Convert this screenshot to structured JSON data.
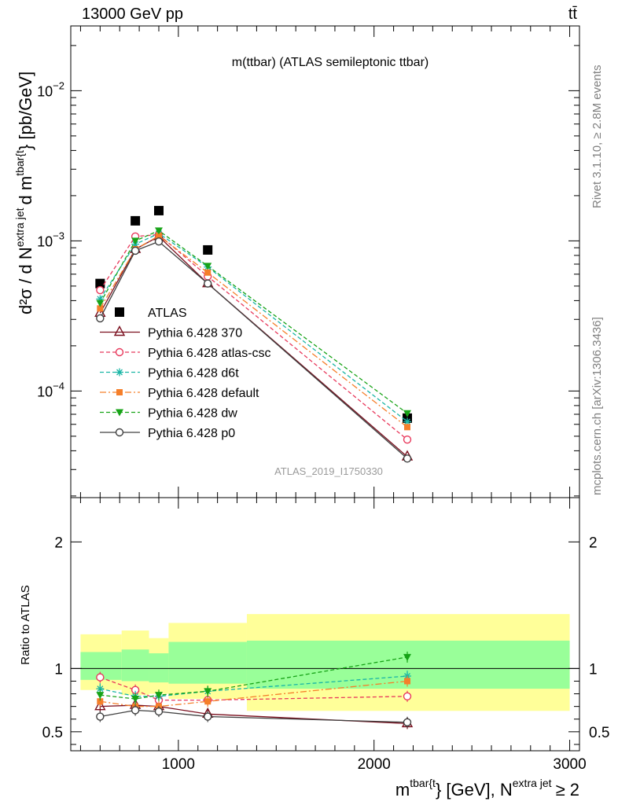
{
  "header": {
    "energy_label": "13000 GeV pp",
    "process_label": "tt̄"
  },
  "side_labels": {
    "rivet": "Rivet 3.1.10, ≥ 2.8M events",
    "mcplots": "mcplots.cern.ch [arXiv:1306.3436]"
  },
  "chart_data": [
    {
      "type": "scatter",
      "panel": "main",
      "title": "m(ttbar) (ATLAS semileptonic ttbar)",
      "analysis_id": "ATLAS_2019_I1750330",
      "ylabel_parts": {
        "d2sigma": "d²σ / d N",
        "sup1": "extra jet",
        "dm": "d m",
        "sup2": "tbar{t",
        "unit": "} [pb/GeV]"
      },
      "xlabel_parts": {
        "m": "m",
        "sup1": "tbar{t",
        "unit": "} [GeV], N",
        "sup2": "extra jet",
        "ge": "≥ 2"
      },
      "yscale": "log",
      "ylim": [
        1.95e-05,
        0.027
      ],
      "xlim": [
        450,
        3050
      ],
      "y_tick_labels": [
        {
          "value": 0.0001,
          "base": "10",
          "exp": "−4"
        },
        {
          "value": 0.001,
          "base": "10",
          "exp": "−3"
        },
        {
          "value": 0.01,
          "base": "10",
          "exp": "−2"
        }
      ],
      "legend": {
        "position": "left-center"
      },
      "x": [
        600,
        780,
        900,
        1150,
        2170
      ],
      "series": [
        {
          "name": "ATLAS",
          "color": "#000000",
          "marker": "filled-square",
          "values": [
            0.00052,
            0.00136,
            0.00159,
            0.00087,
            6.6e-05
          ]
        },
        {
          "name": "Pythia 6.428 370",
          "color": "#7a0f1e",
          "marker": "open-triangle",
          "line": "solid",
          "values": [
            0.00033,
            0.00088,
            0.00107,
            0.00052,
            3.65e-05
          ]
        },
        {
          "name": "Pythia 6.428 atlas-csc",
          "color": "#e8395c",
          "marker": "open-circle",
          "line": "dashed",
          "values": [
            0.00047,
            0.00107,
            0.0011,
            0.00058,
            4.75e-05
          ]
        },
        {
          "name": "Pythia 6.428 d6t",
          "color": "#19b5a5",
          "marker": "star",
          "line": "dashed",
          "values": [
            0.00041,
            0.00095,
            0.00112,
            0.00067,
            6.25e-05
          ]
        },
        {
          "name": "Pythia 6.428 default",
          "color": "#f57f2a",
          "marker": "filled-square-small",
          "line": "dashdot",
          "values": [
            0.000355,
            0.00088,
            0.00108,
            0.000615,
            5.75e-05
          ]
        },
        {
          "name": "Pythia 6.428 dw",
          "color": "#17a317",
          "marker": "filled-down-triangle",
          "line": "dashed",
          "values": [
            0.000385,
            0.001,
            0.00117,
            0.00068,
            7.1e-05
          ]
        },
        {
          "name": "Pythia 6.428 p0",
          "color": "#404040",
          "marker": "open-circle",
          "line": "solid",
          "values": [
            0.000305,
            0.00086,
            0.00099,
            0.00052,
            3.55e-05
          ]
        }
      ]
    },
    {
      "type": "line",
      "panel": "ratio",
      "ylabel": "Ratio to ATLAS",
      "ylim": [
        0.35,
        2.35
      ],
      "xlim": [
        450,
        3050
      ],
      "y_tick_labels": [
        0.5,
        1,
        2
      ],
      "x_tick_labels": [
        1000,
        2000,
        3000
      ],
      "bands": [
        {
          "from": 500,
          "to": 710,
          "yellow": [
            0.83,
            1.27
          ],
          "green": [
            0.91,
            1.13
          ]
        },
        {
          "from": 710,
          "to": 850,
          "yellow": [
            0.79,
            1.3
          ],
          "green": [
            0.9,
            1.15
          ]
        },
        {
          "from": 850,
          "to": 950,
          "yellow": [
            0.8,
            1.24
          ],
          "green": [
            0.89,
            1.12
          ]
        },
        {
          "from": 950,
          "to": 1350,
          "yellow": [
            0.76,
            1.36
          ],
          "green": [
            0.88,
            1.21
          ]
        },
        {
          "from": 1350,
          "to": 3000,
          "yellow": [
            0.665,
            1.43
          ],
          "green": [
            0.84,
            1.22
          ]
        }
      ],
      "x": [
        600,
        780,
        900,
        1150,
        2170
      ],
      "series": [
        {
          "name": "Pythia 6.428 370",
          "color": "#7a0f1e",
          "values": [
            0.7,
            0.71,
            0.7,
            0.64,
            0.565
          ]
        },
        {
          "name": "Pythia 6.428 atlas-csc",
          "color": "#e8395c",
          "values": [
            0.93,
            0.83,
            0.75,
            0.75,
            0.78
          ]
        },
        {
          "name": "Pythia 6.428 d6t",
          "color": "#19b5a5",
          "values": [
            0.84,
            0.78,
            0.78,
            0.82,
            0.94
          ]
        },
        {
          "name": "Pythia 6.428 default",
          "color": "#f57f2a",
          "values": [
            0.74,
            0.7,
            0.7,
            0.74,
            0.9
          ]
        },
        {
          "name": "Pythia 6.428 dw",
          "color": "#17a317",
          "values": [
            0.79,
            0.76,
            0.79,
            0.82,
            1.09
          ]
        },
        {
          "name": "Pythia 6.428 p0",
          "color": "#404040",
          "values": [
            0.62,
            0.67,
            0.66,
            0.62,
            0.575
          ]
        }
      ]
    }
  ]
}
